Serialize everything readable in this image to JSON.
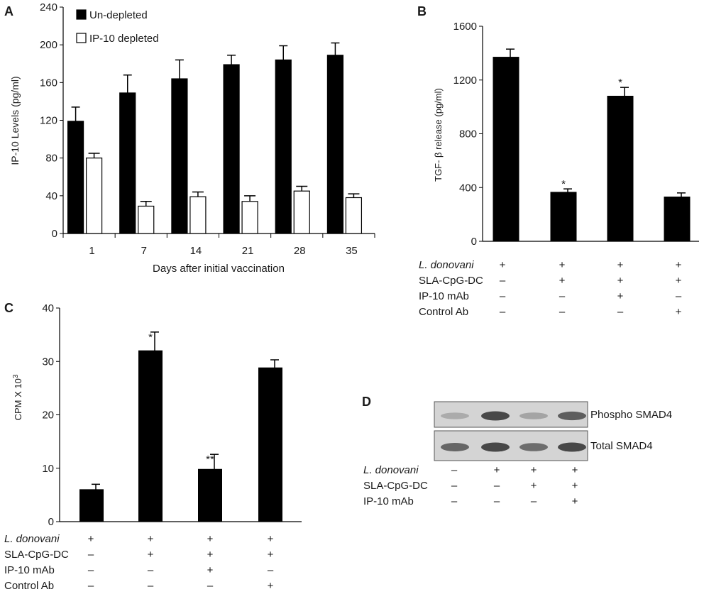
{
  "chart_data": [
    {
      "panel": "A",
      "type": "bar",
      "xlabel": "Days after initial vaccination",
      "ylabel": "IP-10 Levels (pg/ml)",
      "ylim": [
        0,
        240
      ],
      "yticks": [
        "0",
        "40",
        "80",
        "120",
        "160",
        "200",
        "240"
      ],
      "categories": [
        "1",
        "7",
        "14",
        "21",
        "28",
        "35"
      ],
      "series": [
        {
          "name": "Un-depleted",
          "color": "#000000",
          "values": [
            119,
            149,
            164,
            179,
            184,
            189
          ],
          "errors": [
            15,
            19,
            20,
            10,
            15,
            13
          ]
        },
        {
          "name": "IP-10 depleted",
          "color": "#ffffff",
          "values": [
            80,
            29,
            39,
            34,
            45,
            38
          ],
          "errors": [
            5,
            5,
            5,
            6,
            5,
            4
          ]
        }
      ],
      "legend_position": "top-left"
    },
    {
      "panel": "B",
      "type": "bar",
      "ylabel": "TGF- β release (pg/ml)",
      "ylim": [
        0,
        1600
      ],
      "yticks": [
        "0",
        "400",
        "800",
        "1200",
        "1600"
      ],
      "values": [
        1370,
        365,
        1080,
        330
      ],
      "errors": [
        60,
        25,
        65,
        30
      ],
      "annotations": [
        "",
        "*",
        "*",
        ""
      ],
      "treatment_rows": [
        {
          "label": "L. donovani",
          "italic": true,
          "marks": [
            "+",
            "+",
            "+",
            "+"
          ]
        },
        {
          "label": "SLA-CpG-DC",
          "marks": [
            "–",
            "+",
            "+",
            "+"
          ]
        },
        {
          "label": "IP-10 mAb",
          "marks": [
            "–",
            "–",
            "+",
            "–"
          ]
        },
        {
          "label": "Control Ab",
          "marks": [
            "–",
            "–",
            "–",
            "+"
          ]
        }
      ]
    },
    {
      "panel": "C",
      "type": "bar",
      "ylabel": "CPM X 10",
      "ylabel_superscript": "3",
      "ylim": [
        0,
        40
      ],
      "yticks": [
        "0",
        "10",
        "20",
        "30",
        "40"
      ],
      "values": [
        6,
        32,
        9.8,
        28.8
      ],
      "errors": [
        1,
        3.5,
        2.8,
        1.5
      ],
      "annotations": [
        "",
        "*",
        "**",
        ""
      ],
      "treatment_rows": [
        {
          "label": "L. donovani",
          "italic": true,
          "marks": [
            "+",
            "+",
            "+",
            "+"
          ]
        },
        {
          "label": "SLA-CpG-DC",
          "marks": [
            "–",
            "+",
            "+",
            "+"
          ]
        },
        {
          "label": "IP-10 mAb",
          "marks": [
            "–",
            "–",
            "+",
            "–"
          ]
        },
        {
          "label": "Control Ab",
          "marks": [
            "–",
            "–",
            "–",
            "+"
          ]
        }
      ]
    }
  ],
  "blot": {
    "panel": "D",
    "bands": [
      {
        "label": "Phospho SMAD4",
        "intensities": [
          0.2,
          0.85,
          0.25,
          0.7
        ]
      },
      {
        "label": "Total SMAD4",
        "intensities": [
          0.65,
          0.85,
          0.6,
          0.85
        ]
      }
    ],
    "treatment_rows": [
      {
        "label": "L. donovani",
        "italic": true,
        "marks": [
          "–",
          "+",
          "+",
          "+"
        ]
      },
      {
        "label": "SLA-CpG-DC",
        "marks": [
          "–",
          "–",
          "+",
          "+"
        ]
      },
      {
        "label": "IP-10 mAb",
        "marks": [
          "–",
          "–",
          "–",
          "+"
        ]
      }
    ]
  }
}
